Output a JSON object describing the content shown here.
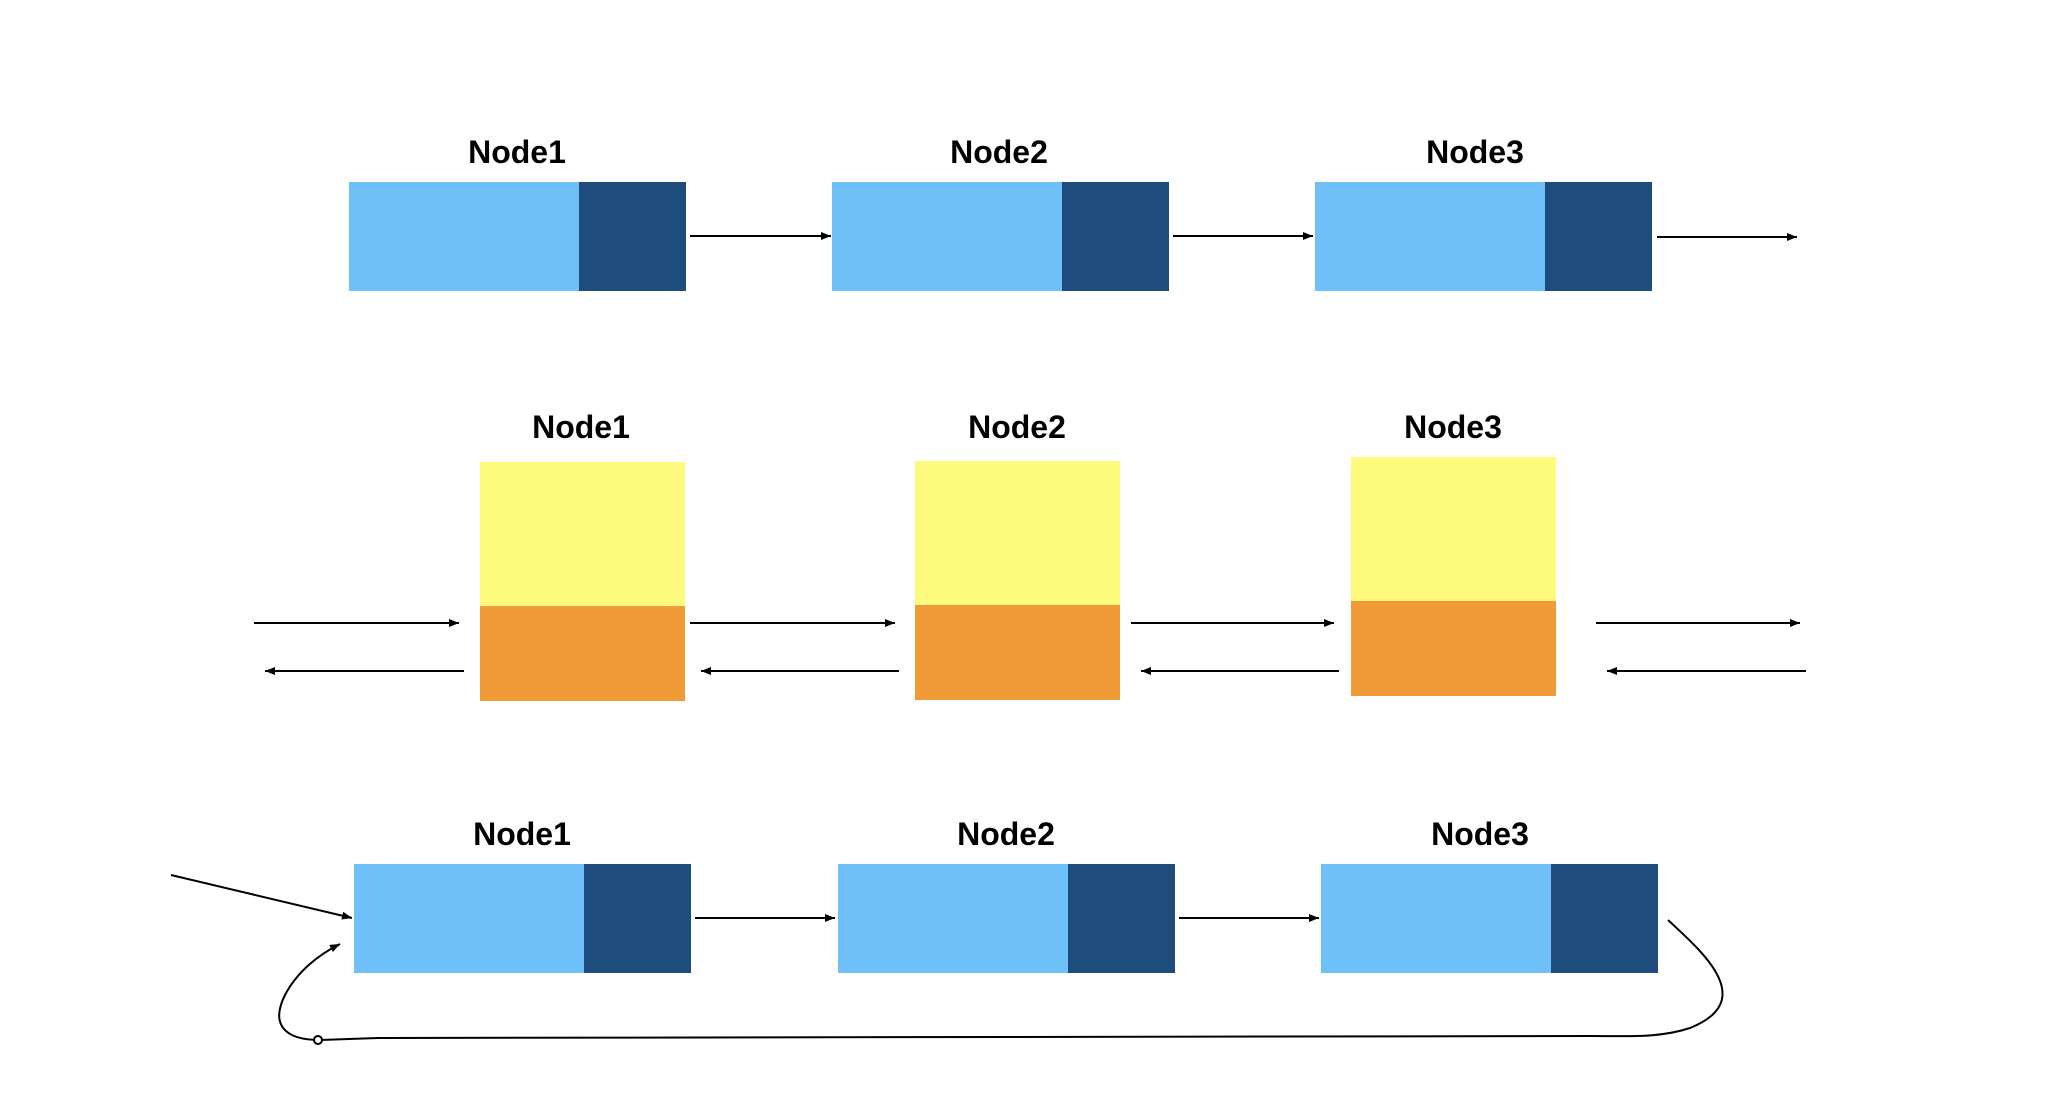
{
  "colors": {
    "singly_data": "#6fc0f8",
    "singly_next": "#1e4c7c",
    "doubly_data": "#fdfa7e",
    "doubly_links": "#f19a38",
    "edge": "#000000",
    "background": "#ffffff"
  },
  "singly_list": {
    "nodes": [
      {
        "label": "Node1"
      },
      {
        "label": "Node2"
      },
      {
        "label": "Node3"
      }
    ]
  },
  "doubly_list": {
    "nodes": [
      {
        "label": "Node1"
      },
      {
        "label": "Node2"
      },
      {
        "label": "Node3"
      }
    ]
  },
  "circular_list": {
    "nodes": [
      {
        "label": "Node1"
      },
      {
        "label": "Node2"
      },
      {
        "label": "Node3"
      }
    ]
  }
}
